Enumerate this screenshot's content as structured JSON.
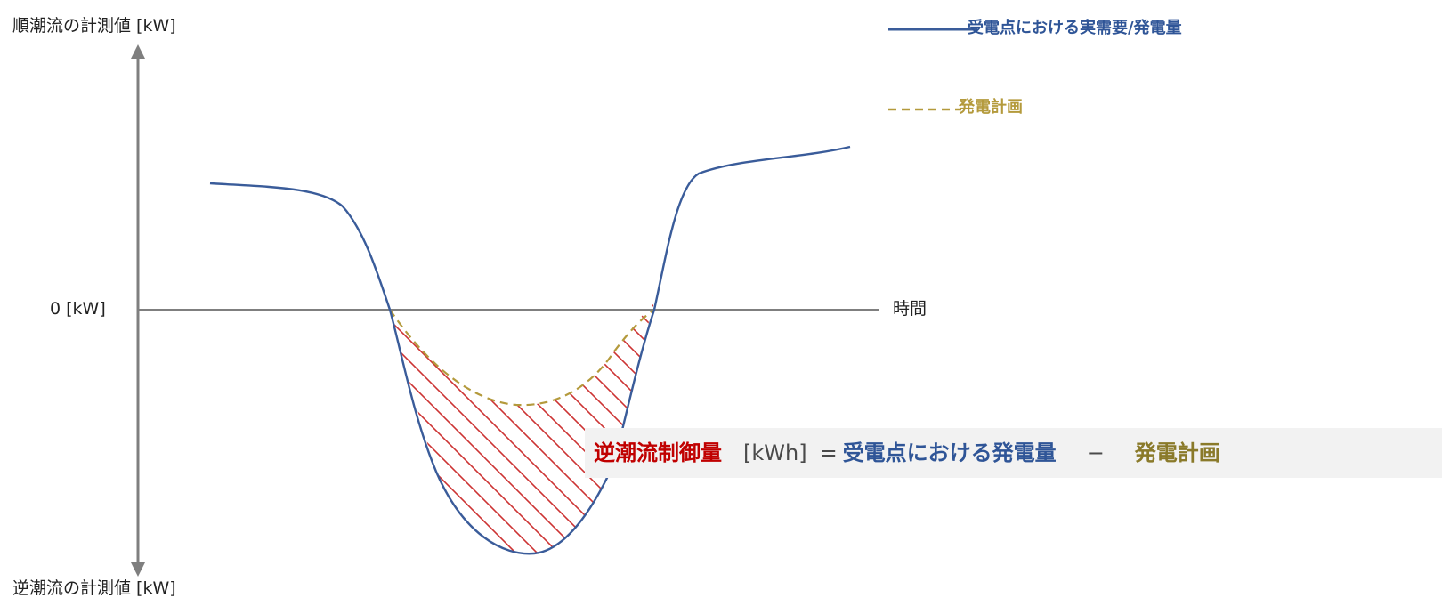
{
  "axis": {
    "y_top_label": "順潮流の計測値 [kW]",
    "y_bottom_label": "逆潮流の計測値 [kW]",
    "zero_label": "0 [kW]",
    "x_label": "時間"
  },
  "legend": {
    "actual_label": "受電点における実需要/発電量",
    "plan_label": "発電計画"
  },
  "formula": {
    "term": "逆潮流制御量",
    "unit": "[kWh]",
    "equals": "=",
    "generation": "受電点における発電量",
    "minus": "−",
    "plan": "発電計画"
  },
  "colors": {
    "axis": "#7f7f7f",
    "actual_line": "#3a5c9a",
    "plan_line": "#b49a3c",
    "hatch": "#cc3333",
    "term_text": "#c00000",
    "generation_text": "#2f5597",
    "plan_text": "#8a7a2a"
  }
}
